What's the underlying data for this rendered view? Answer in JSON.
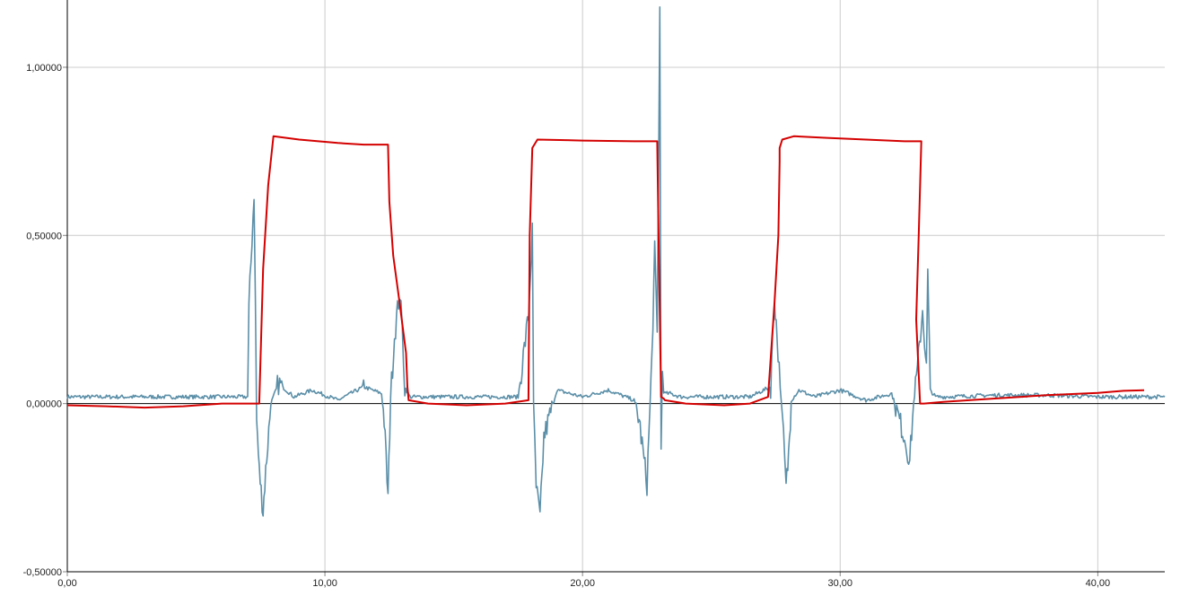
{
  "chart_data": {
    "type": "line",
    "title": "",
    "xlabel": "",
    "ylabel": "",
    "xlim": [
      0,
      42.6
    ],
    "ylim": [
      -0.5,
      1.2
    ],
    "grid": true,
    "x_ticks": [
      0,
      10,
      20,
      30,
      40
    ],
    "x_tick_labels": [
      "0,00",
      "10,00",
      "20,00",
      "30,00",
      "40,00"
    ],
    "y_ticks": [
      -0.5,
      0,
      0.5,
      1.0
    ],
    "y_tick_labels": [
      "-0,50000",
      "0,00000",
      "0,50000",
      "1,00000"
    ],
    "colors": {
      "signal": "#5b8fa8",
      "overlay": "#d40000",
      "grid": "#cccccc",
      "axis": "#000000"
    },
    "series": [
      {
        "x": [
          0,
          7.0,
          7.05,
          7.25,
          7.3,
          7.35,
          7.45,
          7.6,
          7.7,
          7.9,
          8.2,
          8.8,
          9.5,
          10.5,
          11.5,
          12.2,
          12.3,
          12.45,
          12.55,
          12.7,
          12.9,
          13.0,
          13.1,
          13.3,
          14.0,
          16.0,
          17.5,
          17.9,
          18.05,
          18.1,
          18.2,
          18.35,
          18.5,
          19.0,
          20.0,
          21.0,
          22.0,
          22.2,
          22.5,
          22.7,
          22.8,
          22.9,
          23.0,
          23.05,
          23.1,
          23.2,
          23.4,
          23.8,
          25.0,
          26.5,
          27.3,
          27.45,
          27.55,
          27.8,
          27.9,
          28.0,
          28.1,
          28.4,
          29.0,
          30.0,
          31.0,
          32.0,
          32.5,
          32.7,
          32.85,
          33.0,
          33.2,
          33.35,
          33.4,
          33.5,
          33.7,
          34.0,
          36.0,
          38.0,
          40.0,
          42.6
        ],
        "values": [
          0.02,
          0.02,
          0.28,
          0.63,
          0.3,
          -0.05,
          -0.2,
          -0.32,
          -0.2,
          0.0,
          0.06,
          0.02,
          0.04,
          0.01,
          0.05,
          0.03,
          -0.05,
          -0.28,
          0.02,
          0.2,
          0.33,
          0.22,
          0.05,
          0.02,
          0.02,
          0.02,
          0.02,
          0.26,
          0.51,
          0.0,
          -0.25,
          -0.34,
          -0.1,
          0.04,
          0.02,
          0.04,
          0.01,
          -0.05,
          -0.24,
          0.15,
          0.45,
          0.2,
          1.17,
          -0.14,
          0.1,
          0.03,
          0.03,
          0.02,
          0.02,
          0.02,
          0.05,
          0.32,
          0.2,
          -0.1,
          -0.25,
          -0.15,
          0.01,
          0.04,
          0.02,
          0.04,
          0.01,
          0.03,
          -0.1,
          -0.17,
          0.0,
          0.1,
          0.28,
          0.1,
          0.39,
          0.04,
          0.02,
          0.02,
          0.025,
          0.025,
          0.02,
          0.02
        ]
      },
      {
        "x": [
          0,
          1.5,
          3.0,
          4.5,
          6.0,
          7.4,
          7.45,
          7.6,
          7.8,
          8.0,
          9.0,
          10.5,
          11.5,
          12.45,
          12.5,
          12.65,
          12.9,
          13.15,
          13.2,
          13.25,
          14.0,
          15.5,
          17.0,
          17.9,
          17.95,
          18.05,
          18.25,
          20.0,
          22.0,
          22.9,
          22.95,
          23.05,
          23.15,
          23.2,
          24.0,
          25.5,
          26.5,
          27.2,
          27.45,
          27.6,
          27.65,
          27.65,
          27.75,
          28.2,
          29.5,
          31.0,
          32.5,
          33.15,
          33.05,
          32.95,
          33.1,
          33.25,
          34.0,
          36.0,
          38.0,
          40.0,
          41.0,
          41.8
        ],
        "values": [
          -0.005,
          -0.008,
          -0.012,
          -0.008,
          0.0,
          0.0,
          0.0,
          0.4,
          0.65,
          0.795,
          0.785,
          0.775,
          0.77,
          0.77,
          0.6,
          0.44,
          0.3,
          0.15,
          0.05,
          0.01,
          0.0,
          -0.005,
          0.0,
          0.01,
          0.5,
          0.76,
          0.785,
          0.782,
          0.78,
          0.78,
          0.5,
          0.02,
          0.015,
          0.01,
          0.0,
          -0.005,
          0.0,
          0.02,
          0.3,
          0.5,
          0.72,
          0.76,
          0.785,
          0.795,
          0.79,
          0.785,
          0.78,
          0.78,
          0.5,
          0.25,
          0.0,
          0.0,
          0.005,
          0.015,
          0.025,
          0.032,
          0.038,
          0.04
        ]
      }
    ]
  }
}
